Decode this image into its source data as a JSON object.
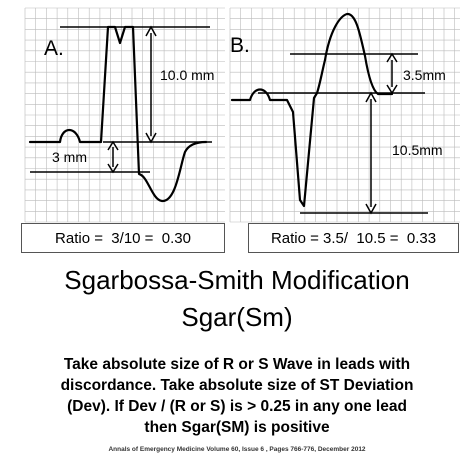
{
  "panel_a": {
    "label": "A.",
    "r_wave_measure": "10.0 mm",
    "st_measure": "3 mm",
    "ratio_text": "Ratio =  3/10 =  0.30"
  },
  "panel_b": {
    "label": "B.",
    "st_measure": "3.5mm",
    "s_wave_measure": "10.5mm",
    "ratio_text": "Ratio = 3.5/  10.5 =  0.33"
  },
  "title": {
    "line1": "Sgarbossa-Smith Modification",
    "line2": "Sgar(Sm)"
  },
  "description": {
    "line1": "Take absolute size of R or S Wave in leads with",
    "line2": "discordance. Take absolute size of ST Deviation",
    "line3": "(Dev). If Dev / (R or S) is > 0.25 in any one lead",
    "line4": "then Sgar(SM) is positive"
  },
  "citation": "Annals of Emergency Medicine Volume 60, Issue 6 , Pages 766-776, December 2012",
  "colors": {
    "grid": "#bbbbbb",
    "trace": "#000000",
    "box_border": "#555555"
  }
}
